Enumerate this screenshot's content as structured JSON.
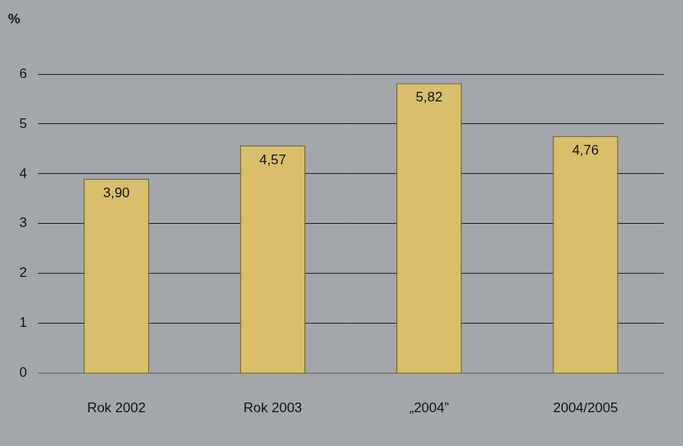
{
  "chart_data": {
    "type": "bar",
    "y_label": "%",
    "categories": [
      "Rok 2002",
      "Rok 2003",
      "„2004”",
      "2004/2005"
    ],
    "values": [
      3.9,
      4.57,
      5.82,
      4.76
    ],
    "value_labels": [
      "3,90",
      "4,57",
      "5,82",
      "4,76"
    ],
    "color": "#d9bf6b",
    "ylim": [
      0,
      6
    ],
    "yticks": [
      0,
      1,
      2,
      3,
      4,
      5,
      6
    ],
    "grid": true,
    "data_labels": true
  }
}
